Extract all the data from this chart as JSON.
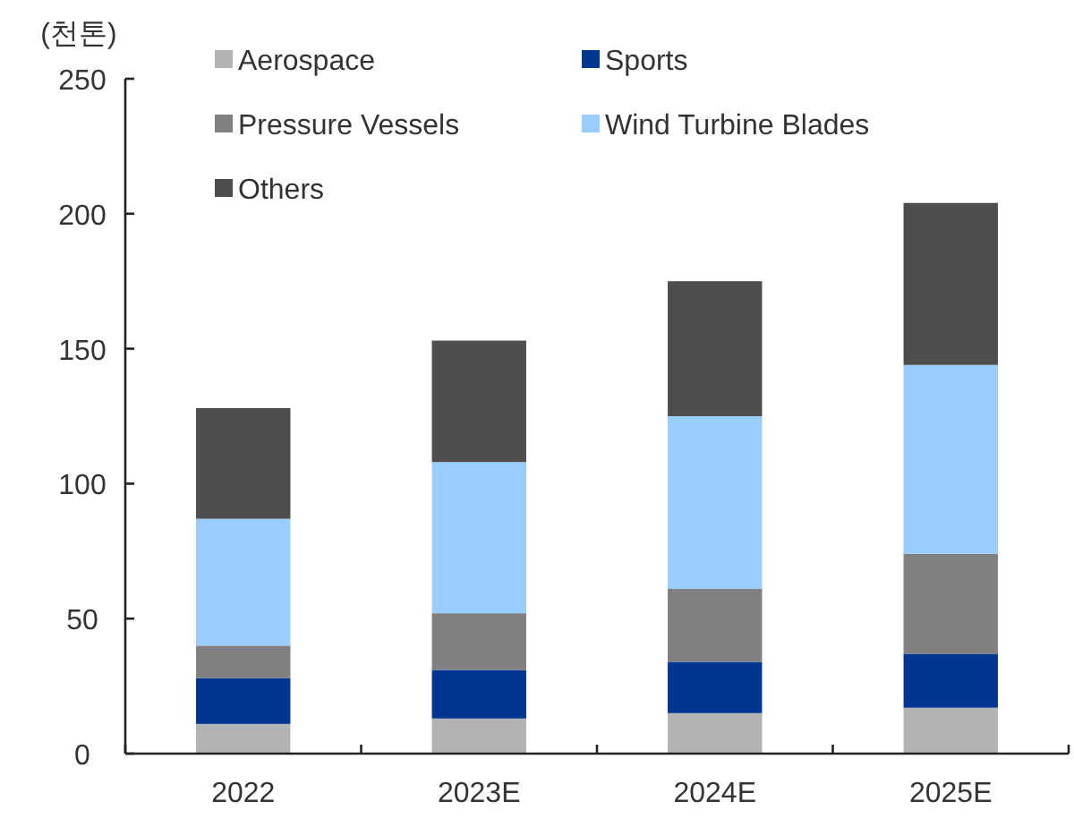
{
  "chart_data": {
    "type": "bar",
    "stacked": true,
    "ylabel": "(천톤)",
    "categories": [
      "2022",
      "2023E",
      "2024E",
      "2025E"
    ],
    "ylim": [
      0,
      250
    ],
    "yticks": [
      0,
      50,
      100,
      150,
      200,
      250
    ],
    "grid": false,
    "legend": "top left",
    "series": [
      {
        "name": "Aerospace",
        "color": "#b3b3b3",
        "values": [
          11,
          13,
          15,
          17
        ]
      },
      {
        "name": "Sports",
        "color": "#003591",
        "values": [
          17,
          18,
          19,
          20
        ]
      },
      {
        "name": "Pressure Vessels",
        "color": "#808080",
        "values": [
          12,
          21,
          27,
          37
        ]
      },
      {
        "name": "Wind Turbine Blades",
        "color": "#99ccff",
        "values": [
          47,
          56,
          64,
          70
        ]
      },
      {
        "name": "Others",
        "color": "#4d4d4d",
        "values": [
          41,
          45,
          50,
          60
        ]
      }
    ]
  }
}
